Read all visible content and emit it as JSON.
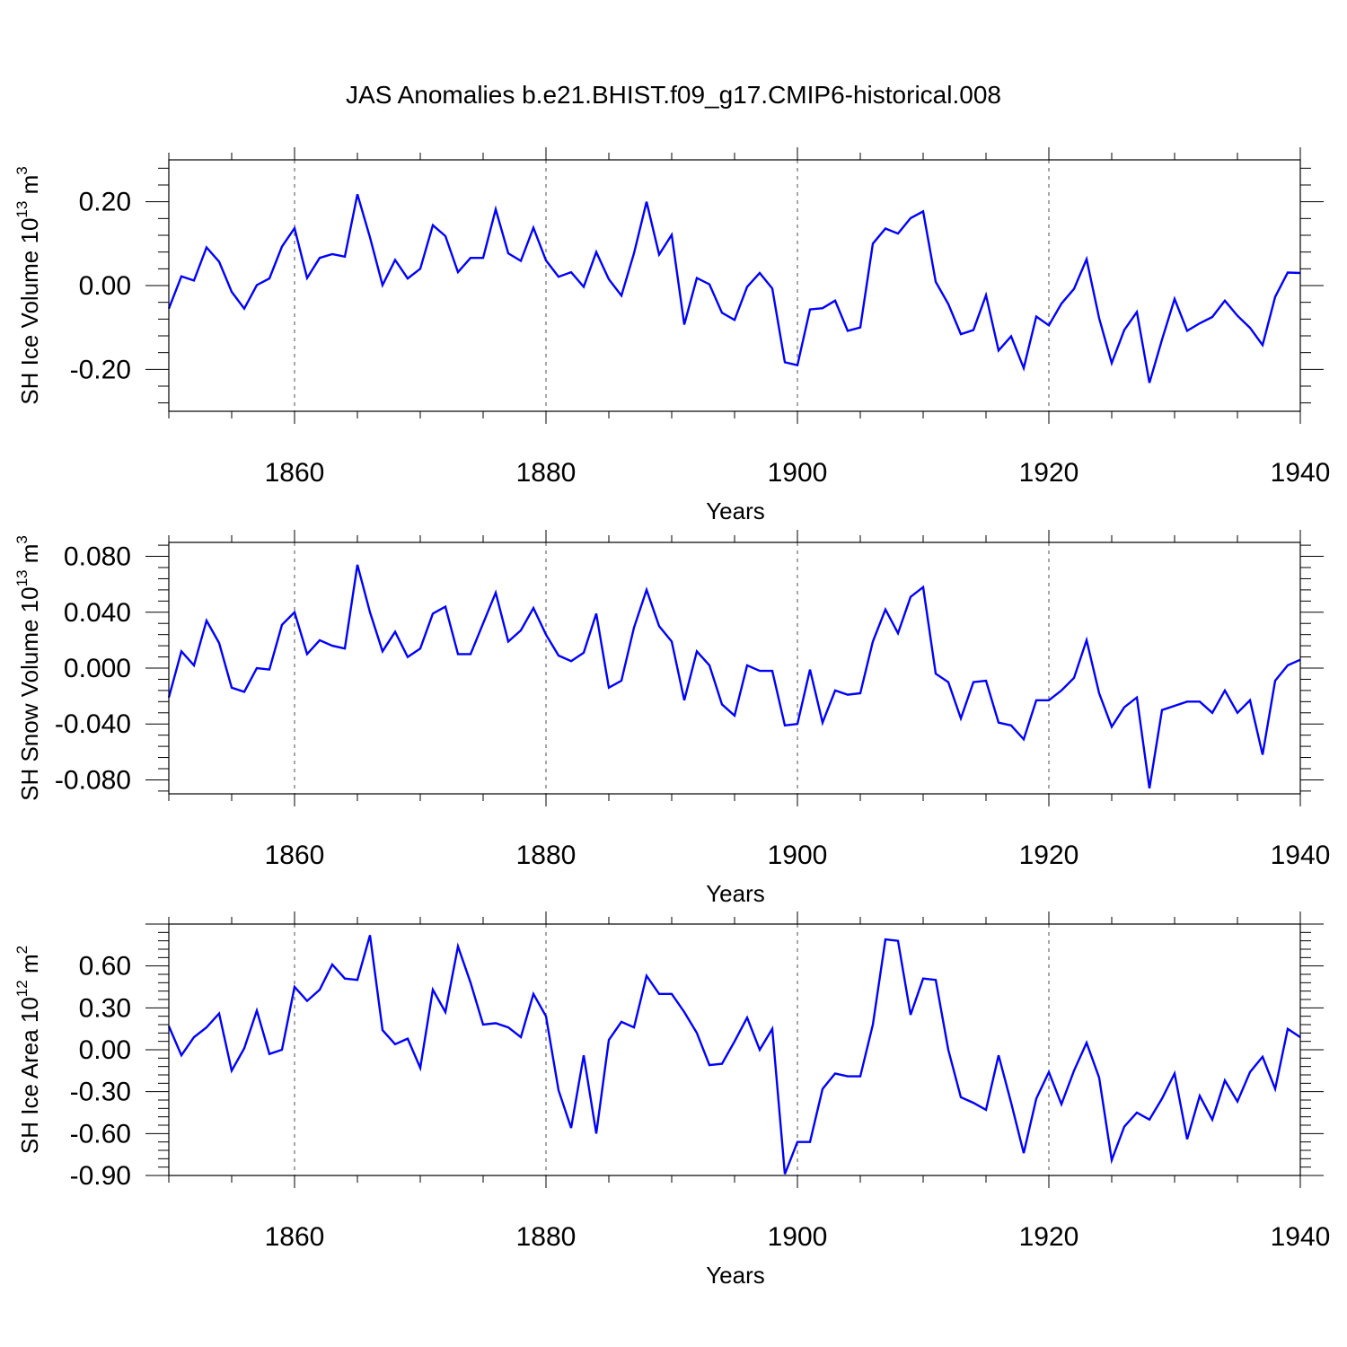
{
  "title": "JAS Anomalies b.e21.BHIST.f09_g17.CMIP6-historical.008",
  "colors": {
    "series": "#0000ff",
    "axis": "#000000",
    "grid": "#000000"
  },
  "chart_data": [
    {
      "type": "line",
      "xlabel": "Years",
      "ylabel": {
        "text": "SH Ice Volume 10",
        "exp": "13",
        "unit": " m",
        "unit_exp": "3"
      },
      "xlim": [
        1850,
        1940
      ],
      "ylim": [
        -0.3,
        0.3
      ],
      "x_ticks": [
        "1860",
        "1880",
        "1900",
        "1920",
        "1940"
      ],
      "y_ticks": [
        "-0.20",
        "0.00",
        "0.20"
      ],
      "grid": "vertical dashed at major x ticks",
      "x_start": 1850,
      "series": [
        {
          "values": [
            -0.055,
            0.022,
            0.012,
            0.091,
            0.057,
            -0.015,
            -0.055,
            0.001,
            0.017,
            0.093,
            0.137,
            0.018,
            0.066,
            0.075,
            0.069,
            0.218,
            0.115,
            0.001,
            0.061,
            0.017,
            0.04,
            0.144,
            0.118,
            0.032,
            0.066,
            0.066,
            0.182,
            0.077,
            0.059,
            0.138,
            0.06,
            0.021,
            0.032,
            -0.003,
            0.08,
            0.015,
            -0.024,
            0.077,
            0.2,
            0.074,
            0.121,
            -0.093,
            0.018,
            0.003,
            -0.065,
            -0.082,
            -0.003,
            0.03,
            -0.007,
            -0.183,
            -0.19,
            -0.057,
            -0.054,
            -0.036,
            -0.108,
            -0.1,
            0.1,
            0.136,
            0.124,
            0.161,
            0.177,
            0.009,
            -0.044,
            -0.116,
            -0.106,
            -0.023,
            -0.155,
            -0.121,
            -0.197,
            -0.074,
            -0.095,
            -0.043,
            -0.008,
            0.063,
            -0.078,
            -0.185,
            -0.106,
            -0.063,
            -0.232,
            -0.129,
            -0.032,
            -0.108,
            -0.09,
            -0.075,
            -0.036,
            -0.072,
            -0.101,
            -0.142,
            -0.027,
            0.031,
            0.03
          ]
        }
      ]
    },
    {
      "type": "line",
      "xlabel": "Years",
      "ylabel": {
        "text": "SH Snow Volume 10",
        "exp": "13",
        "unit": " m",
        "unit_exp": "3"
      },
      "xlim": [
        1850,
        1940
      ],
      "ylim": [
        -0.09,
        0.09
      ],
      "x_ticks": [
        "1860",
        "1880",
        "1900",
        "1920",
        "1940"
      ],
      "y_ticks": [
        "-0.080",
        "-0.040",
        "0.000",
        "0.040",
        "0.080"
      ],
      "grid": "vertical dashed at major x ticks",
      "x_start": 1850,
      "series": [
        {
          "values": [
            -0.021,
            0.012,
            0.002,
            0.034,
            0.018,
            -0.014,
            -0.017,
            0.0,
            -0.001,
            0.031,
            0.04,
            0.01,
            0.02,
            0.016,
            0.014,
            0.074,
            0.04,
            0.012,
            0.026,
            0.008,
            0.014,
            0.039,
            0.044,
            0.01,
            0.01,
            0.032,
            0.054,
            0.019,
            0.027,
            0.043,
            0.024,
            0.009,
            0.005,
            0.011,
            0.039,
            -0.014,
            -0.009,
            0.029,
            0.056,
            0.03,
            0.019,
            -0.023,
            0.012,
            0.002,
            -0.026,
            -0.034,
            0.002,
            -0.002,
            -0.002,
            -0.041,
            -0.04,
            -0.001,
            -0.039,
            -0.016,
            -0.019,
            -0.018,
            0.019,
            0.042,
            0.025,
            0.051,
            0.058,
            -0.004,
            -0.01,
            -0.036,
            -0.01,
            -0.009,
            -0.039,
            -0.041,
            -0.051,
            -0.023,
            -0.023,
            -0.016,
            -0.007,
            0.02,
            -0.018,
            -0.042,
            -0.028,
            -0.021,
            -0.086,
            -0.03,
            -0.027,
            -0.024,
            -0.024,
            -0.032,
            -0.016,
            -0.032,
            -0.023,
            -0.062,
            -0.009,
            0.002,
            0.006
          ]
        }
      ]
    },
    {
      "type": "line",
      "xlabel": "Years",
      "ylabel": {
        "text": "SH Ice Area 10",
        "exp": "12",
        "unit": " m",
        "unit_exp": "2"
      },
      "xlim": [
        1850,
        1940
      ],
      "ylim": [
        -0.9,
        0.9
      ],
      "x_ticks": [
        "1860",
        "1880",
        "1900",
        "1920",
        "1940"
      ],
      "y_ticks": [
        "-0.90",
        "-0.60",
        "-0.30",
        "0.00",
        "0.30",
        "0.60"
      ],
      "grid": "vertical dashed at major x ticks",
      "x_start": 1850,
      "series": [
        {
          "values": [
            0.17,
            -0.04,
            0.09,
            0.16,
            0.26,
            -0.15,
            0.01,
            0.28,
            -0.03,
            0.0,
            0.45,
            0.35,
            0.43,
            0.61,
            0.51,
            0.5,
            0.82,
            0.14,
            0.04,
            0.08,
            -0.13,
            0.43,
            0.27,
            0.74,
            0.48,
            0.18,
            0.19,
            0.16,
            0.09,
            0.4,
            0.24,
            -0.29,
            -0.56,
            -0.04,
            -0.6,
            0.07,
            0.2,
            0.16,
            0.53,
            0.4,
            0.4,
            0.27,
            0.12,
            -0.11,
            -0.1,
            0.06,
            0.23,
            0.0,
            0.15,
            -0.89,
            -0.66,
            -0.66,
            -0.28,
            -0.17,
            -0.19,
            -0.19,
            0.18,
            0.79,
            0.78,
            0.25,
            0.51,
            0.5,
            0.0,
            -0.34,
            -0.38,
            -0.43,
            -0.04,
            -0.38,
            -0.74,
            -0.35,
            -0.16,
            -0.39,
            -0.15,
            0.05,
            -0.2,
            -0.79,
            -0.55,
            -0.45,
            -0.5,
            -0.35,
            -0.17,
            -0.64,
            -0.33,
            -0.5,
            -0.22,
            -0.37,
            -0.16,
            -0.05,
            -0.28,
            0.15,
            0.09
          ]
        }
      ]
    }
  ]
}
